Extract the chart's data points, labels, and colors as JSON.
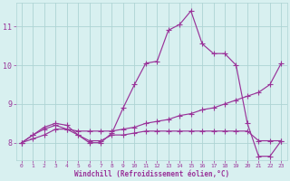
{
  "xlabel": "Windchill (Refroidissement éolien,°C)",
  "xlim": [
    -0.5,
    23.5
  ],
  "ylim": [
    7.55,
    11.6
  ],
  "yticks": [
    8,
    9,
    10,
    11
  ],
  "xticks": [
    0,
    1,
    2,
    3,
    4,
    5,
    6,
    7,
    8,
    9,
    10,
    11,
    12,
    13,
    14,
    15,
    16,
    17,
    18,
    19,
    20,
    21,
    22,
    23
  ],
  "line1_x": [
    0,
    1,
    2,
    3,
    4,
    5,
    6,
    7,
    8,
    9,
    10,
    11,
    12,
    13,
    14,
    15,
    16,
    17,
    18,
    19,
    20,
    21,
    22,
    23
  ],
  "line1_y": [
    8.0,
    8.2,
    8.4,
    8.5,
    8.45,
    8.2,
    8.0,
    8.0,
    8.25,
    8.9,
    9.5,
    10.05,
    10.1,
    10.9,
    11.05,
    11.4,
    10.55,
    10.3,
    10.3,
    10.0,
    8.5,
    7.65,
    7.65,
    8.05
  ],
  "line2_x": [
    0,
    1,
    2,
    3,
    4,
    5,
    6,
    7,
    8,
    9,
    10,
    11,
    12,
    13,
    14,
    15,
    16,
    17,
    18,
    19,
    20,
    21,
    22,
    23
  ],
  "line2_y": [
    8.0,
    8.1,
    8.2,
    8.35,
    8.35,
    8.3,
    8.3,
    8.3,
    8.3,
    8.35,
    8.4,
    8.5,
    8.55,
    8.6,
    8.7,
    8.75,
    8.85,
    8.9,
    9.0,
    9.1,
    9.2,
    9.3,
    9.5,
    10.05
  ],
  "line3_x": [
    0,
    1,
    2,
    3,
    4,
    5,
    6,
    7,
    8,
    9,
    10,
    11,
    12,
    13,
    14,
    15,
    16,
    17,
    18,
    19,
    20,
    21,
    22,
    23
  ],
  "line3_y": [
    8.0,
    8.2,
    8.35,
    8.45,
    8.35,
    8.2,
    8.05,
    8.05,
    8.2,
    8.2,
    8.25,
    8.3,
    8.3,
    8.3,
    8.3,
    8.3,
    8.3,
    8.3,
    8.3,
    8.3,
    8.3,
    8.05,
    8.05,
    8.05
  ],
  "line_color": "#993399",
  "bg_color": "#d8f0f0",
  "grid_color": "#aed4d4",
  "tick_label_color": "#993399",
  "xlabel_color": "#993399",
  "marker": "+",
  "markersize": 4,
  "linewidth": 0.85
}
